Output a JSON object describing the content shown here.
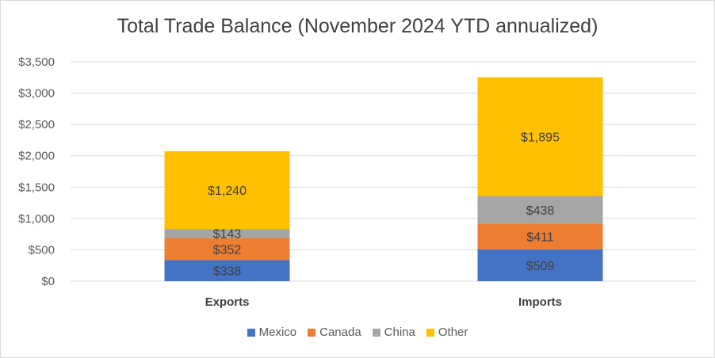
{
  "chart_data": {
    "type": "bar",
    "stacked": true,
    "title": "Total Trade Balance (November 2024 YTD annualized)",
    "categories": [
      "Exports",
      "Imports"
    ],
    "series": [
      {
        "name": "Mexico",
        "values": [
          338,
          509
        ],
        "labels": [
          "$338",
          "$509"
        ],
        "color": "#4472C4"
      },
      {
        "name": "Canada",
        "values": [
          352,
          411
        ],
        "labels": [
          "$352",
          "$411"
        ],
        "color": "#ED7D31"
      },
      {
        "name": "China",
        "values": [
          143,
          438
        ],
        "labels": [
          "$143",
          "$438"
        ],
        "color": "#A5A5A5"
      },
      {
        "name": "Other",
        "values": [
          1240,
          1895
        ],
        "labels": [
          "$1,240",
          "$1,895"
        ],
        "color": "#FFC000"
      }
    ],
    "ylim": [
      0,
      3500
    ],
    "yticks": [
      0,
      500,
      1000,
      1500,
      2000,
      2500,
      3000,
      3500
    ],
    "ytick_labels": [
      "$0",
      "$500",
      "$1,000",
      "$1,500",
      "$2,000",
      "$2,500",
      "$3,000",
      "$3,500"
    ],
    "grid": true,
    "legend_position": "bottom"
  }
}
